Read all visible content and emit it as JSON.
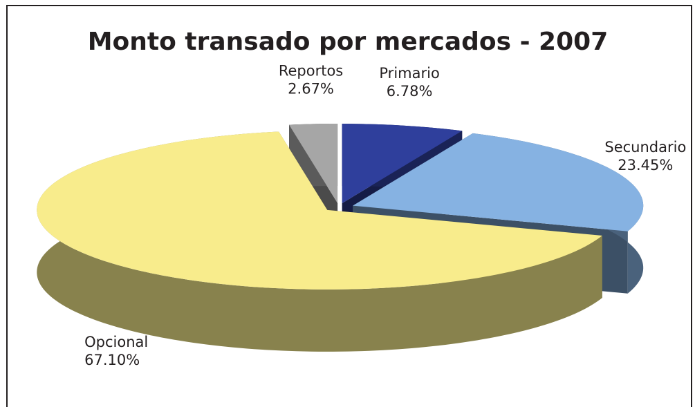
{
  "chart_data": {
    "type": "pie",
    "title": "Monto transado por mercados - 2007",
    "categories": [
      "Primario",
      "Secundario",
      "Opcional",
      "Reportos"
    ],
    "values": [
      6.78,
      23.45,
      67.1,
      2.67
    ],
    "value_labels": [
      "6.78%",
      "23.45%",
      "67.10%",
      "2.67%"
    ],
    "colors": [
      "#2f3f9c",
      "#86b2e2",
      "#f8ec8c",
      "#a6a6a6"
    ]
  }
}
